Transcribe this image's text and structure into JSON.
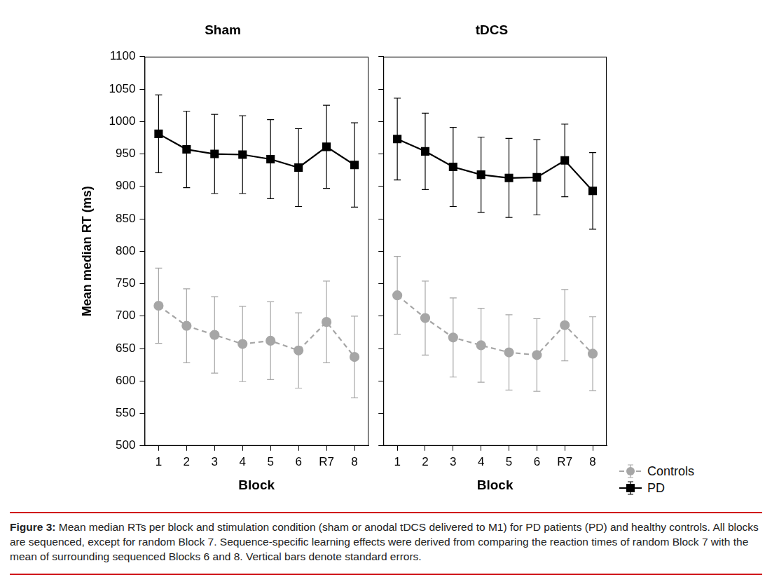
{
  "chart_data": [
    {
      "type": "line",
      "title": "Sham",
      "x_label": "Block",
      "y_label": "Mean median RT (ms)",
      "categories": [
        "1",
        "2",
        "3",
        "4",
        "5",
        "6",
        "R7",
        "8"
      ],
      "ylim": [
        500,
        1100
      ],
      "yticks": [
        500,
        550,
        600,
        650,
        700,
        750,
        800,
        850,
        900,
        950,
        1000,
        1050,
        1100
      ],
      "grid": false,
      "series": [
        {
          "name": "Controls",
          "color": "#a6a6a6",
          "marker": "circle",
          "line_style": "dashed",
          "values": [
            716,
            685,
            671,
            657,
            662,
            647,
            691,
            637
          ],
          "errors": [
            58,
            57,
            59,
            58,
            60,
            58,
            63,
            63
          ]
        },
        {
          "name": "PD",
          "color": "#000000",
          "marker": "square",
          "line_style": "solid",
          "values": [
            981,
            957,
            950,
            949,
            942,
            929,
            961,
            933
          ],
          "errors": [
            60,
            59,
            61,
            60,
            61,
            60,
            64,
            65
          ]
        }
      ]
    },
    {
      "type": "line",
      "title": "tDCS",
      "x_label": "Block",
      "categories": [
        "1",
        "2",
        "3",
        "4",
        "5",
        "6",
        "R7",
        "8"
      ],
      "ylim": [
        500,
        1100
      ],
      "yticks": [
        500,
        550,
        600,
        650,
        700,
        750,
        800,
        850,
        900,
        950,
        1000,
        1050,
        1100
      ],
      "grid": false,
      "tick_labels": "x",
      "legend": "bottom",
      "series": [
        {
          "name": "Controls",
          "color": "#a6a6a6",
          "marker": "circle",
          "line_style": "dashed",
          "values": [
            732,
            697,
            667,
            655,
            644,
            640,
            686,
            642
          ],
          "errors": [
            60,
            57,
            61,
            57,
            58,
            56,
            55,
            57
          ]
        },
        {
          "name": "PD",
          "color": "#000000",
          "marker": "square",
          "line_style": "solid",
          "values": [
            973,
            954,
            930,
            918,
            913,
            914,
            940,
            893
          ],
          "errors": [
            63,
            59,
            61,
            58,
            61,
            58,
            56,
            59
          ]
        }
      ]
    }
  ],
  "caption": {
    "label": "Figure 3:",
    "text": "Mean median RTs per block and stimulation condition (sham or anodal tDCS delivered to M1) for PD patients (PD) and healthy controls. All blocks are sequenced, except for random Block 7. Sequence-specific learning effects were derived from comparing the reaction times of random Block 7 with the mean of surrounding sequenced Blocks 6 and 8. Vertical bars denote standard errors."
  }
}
